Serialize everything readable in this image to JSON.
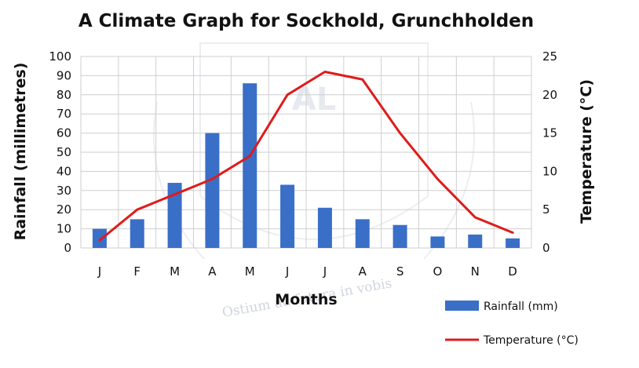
{
  "chart_data": {
    "type": "bar",
    "title": "A Climate Graph for Sockhold, Grunchholden",
    "xlabel": "Months",
    "ylabel": "Rainfall (millimetres)",
    "y2label": "Temperature (°C)",
    "categories": [
      "J",
      "F",
      "M",
      "A",
      "M",
      "J",
      "J",
      "A",
      "S",
      "O",
      "N",
      "D"
    ],
    "ylim": [
      0,
      100
    ],
    "y_ticks": [
      "0",
      "10",
      "20",
      "30",
      "40",
      "50",
      "60",
      "70",
      "80",
      "90",
      "100"
    ],
    "y2lim": [
      0,
      25
    ],
    "y2_ticks": [
      "0",
      "5",
      "10",
      "15",
      "20",
      "25"
    ],
    "grid": true,
    "legend_position": "bottom-right",
    "series": [
      {
        "name": "Rainfall (mm)",
        "type": "bar",
        "axis": "left",
        "color": "#3a6fc8",
        "values": [
          10,
          15,
          34,
          60,
          86,
          33,
          21,
          15,
          12,
          6,
          7,
          5
        ]
      },
      {
        "name": "Temperature (°C)",
        "type": "line",
        "axis": "right",
        "color": "#e01b1b",
        "values": [
          1,
          5,
          7,
          9,
          12,
          20,
          23,
          22,
          15,
          9,
          4,
          2
        ]
      }
    ]
  },
  "watermark": {
    "text": "Ostium ad futura in vobis",
    "logo_text": "AL"
  }
}
